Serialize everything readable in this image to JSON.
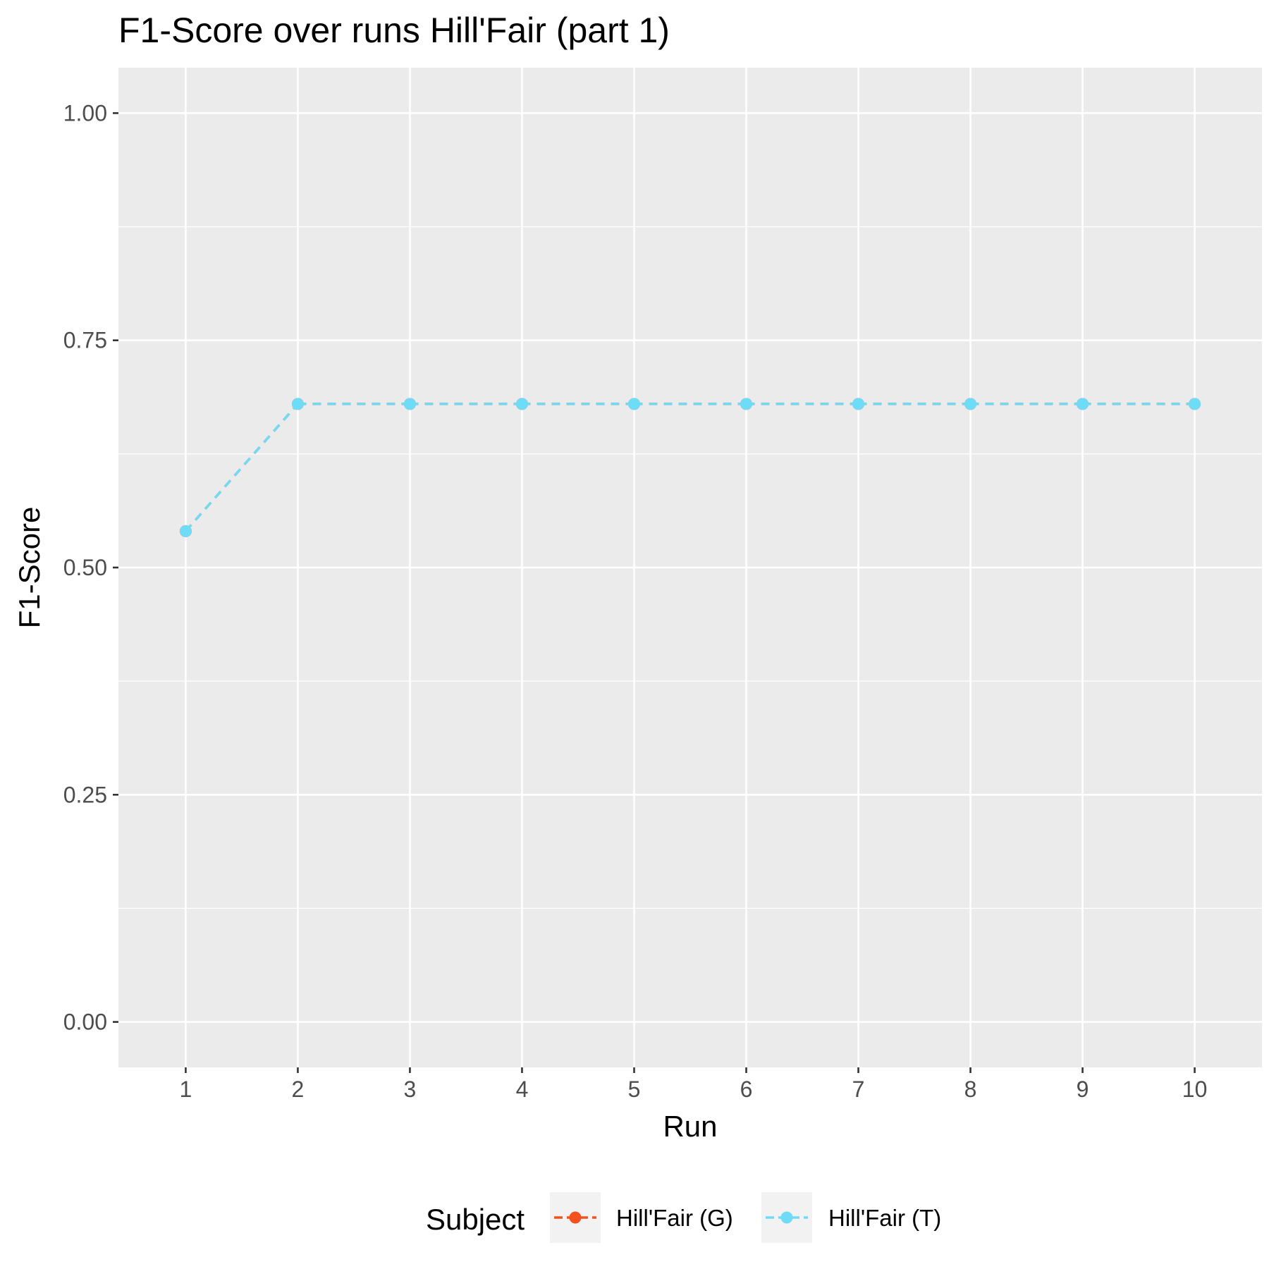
{
  "chart_data": {
    "type": "line",
    "title": "F1-Score over runs Hill'Fair (part 1)",
    "xlabel": "Run",
    "ylabel": "F1-Score",
    "x": [
      1,
      2,
      3,
      4,
      5,
      6,
      7,
      8,
      9,
      10
    ],
    "x_tick_labels": [
      "1",
      "2",
      "3",
      "4",
      "5",
      "6",
      "7",
      "8",
      "9",
      "10"
    ],
    "y_ticks": [
      0,
      0.25,
      0.5,
      0.75,
      1
    ],
    "y_tick_labels": [
      "0.00",
      "0.25",
      "0.50",
      "0.75",
      "1.00"
    ],
    "xlim": [
      0.4,
      10.6
    ],
    "ylim": [
      -0.05,
      1.05
    ],
    "grid": true,
    "legend_position": "bottom",
    "legend_title": "Subject",
    "series": [
      {
        "name": "Hill'Fair (G)",
        "color": "#f4511e",
        "line_style": "dashed",
        "values": [
          0.54,
          0.68,
          0.68,
          0.68,
          0.68,
          0.68,
          0.68,
          0.68,
          0.68,
          0.68
        ]
      },
      {
        "name": "Hill'Fair (T)",
        "color": "#6fdcf7",
        "line_style": "dashed",
        "values": [
          0.54,
          0.68,
          0.68,
          0.68,
          0.68,
          0.68,
          0.68,
          0.68,
          0.68,
          0.68
        ]
      }
    ]
  }
}
